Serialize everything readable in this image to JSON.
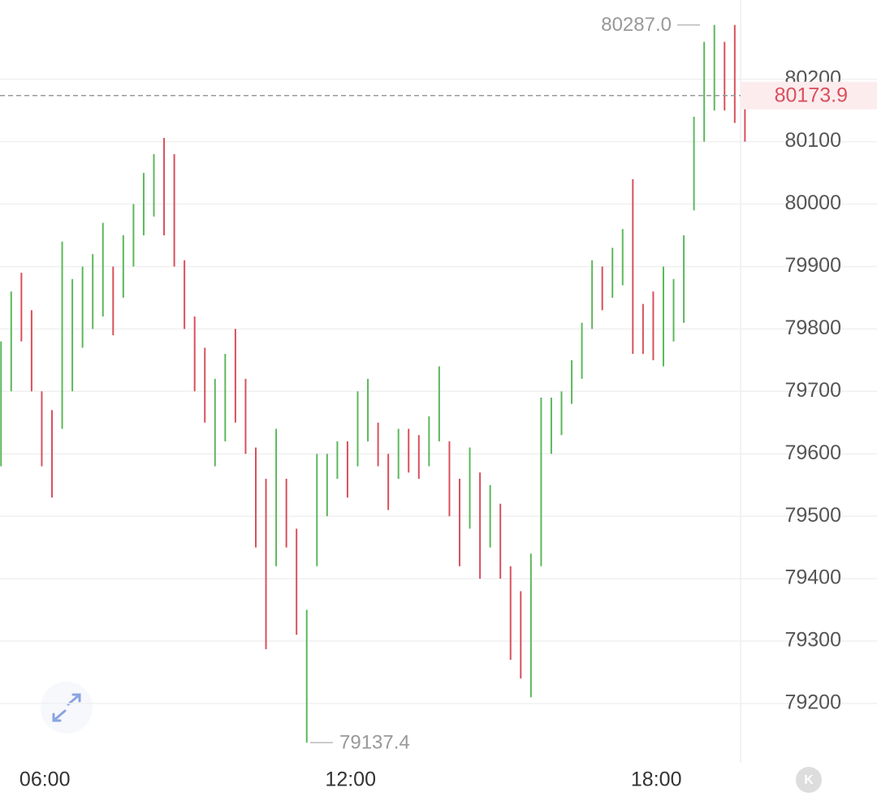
{
  "chart_data": {
    "type": "range_bar",
    "x": [
      5.14,
      5.34,
      5.54,
      5.74,
      5.94,
      6.14,
      6.34,
      6.54,
      6.74,
      6.94,
      7.14,
      7.34,
      7.54,
      7.74,
      7.94,
      8.14,
      8.34,
      8.54,
      8.74,
      8.94,
      9.14,
      9.34,
      9.54,
      9.74,
      9.94,
      10.14,
      10.34,
      10.54,
      10.74,
      10.94,
      11.14,
      11.34,
      11.54,
      11.74,
      11.94,
      12.14,
      12.34,
      12.54,
      12.74,
      12.94,
      13.14,
      13.34,
      13.54,
      13.74,
      13.94,
      14.14,
      14.34,
      14.54,
      14.74,
      14.94,
      15.14,
      15.34,
      15.54,
      15.74,
      15.94,
      16.14,
      16.34,
      16.54,
      16.74,
      16.94,
      17.14,
      17.34,
      17.54,
      17.74,
      17.94,
      18.14,
      18.34,
      18.54,
      18.74,
      18.94,
      19.14,
      19.34,
      19.54,
      19.74
    ],
    "highs": [
      79780,
      79860,
      79890,
      79830,
      79700,
      79670,
      79940,
      79880,
      79900,
      79920,
      79970,
      79900,
      79950,
      80000,
      80050,
      80080,
      80106,
      80080,
      79910,
      79820,
      79770,
      79720,
      79760,
      79800,
      79720,
      79610,
      79560,
      79640,
      79560,
      79480,
      79350,
      79600,
      79600,
      79620,
      79620,
      79700,
      79720,
      79650,
      79600,
      79640,
      79640,
      79630,
      79660,
      79740,
      79620,
      79560,
      79610,
      79570,
      79550,
      79520,
      79420,
      79380,
      79440,
      79690,
      79690,
      79700,
      79750,
      79810,
      79910,
      79900,
      79930,
      79960,
      80040,
      79840,
      79860,
      79900,
      79880,
      79950,
      80140,
      80260,
      80287,
      80260,
      80287,
      80180
    ],
    "lows": [
      79580,
      79700,
      79780,
      79700,
      79580,
      79530,
      79640,
      79700,
      79770,
      79800,
      79820,
      79790,
      79850,
      79900,
      79950,
      79980,
      79950,
      79900,
      79800,
      79700,
      79650,
      79580,
      79620,
      79650,
      79600,
      79450,
      79287,
      79420,
      79450,
      79310,
      79137.4,
      79420,
      79500,
      79560,
      79530,
      79580,
      79620,
      79580,
      79510,
      79560,
      79570,
      79560,
      79580,
      79620,
      79500,
      79420,
      79480,
      79400,
      79450,
      79400,
      79270,
      79240,
      79210,
      79420,
      79600,
      79630,
      79680,
      79720,
      79800,
      79830,
      79850,
      79870,
      79760,
      79760,
      79750,
      79740,
      79780,
      79810,
      79990,
      80100,
      80150,
      80150,
      80130,
      80100
    ],
    "up": [
      true,
      true,
      false,
      false,
      false,
      false,
      true,
      true,
      true,
      true,
      true,
      false,
      true,
      true,
      true,
      true,
      false,
      false,
      false,
      false,
      false,
      true,
      true,
      false,
      false,
      false,
      false,
      true,
      false,
      false,
      true,
      true,
      true,
      true,
      false,
      true,
      true,
      false,
      false,
      true,
      false,
      false,
      true,
      true,
      false,
      false,
      true,
      false,
      true,
      false,
      false,
      false,
      true,
      true,
      true,
      true,
      true,
      true,
      true,
      false,
      true,
      true,
      false,
      false,
      false,
      true,
      true,
      true,
      true,
      true,
      true,
      false,
      false,
      false
    ],
    "up_color": "#5cb85c",
    "down_color": "#d9505c",
    "xlim": [
      5.12,
      19.75
    ],
    "xticks": [
      {
        "value": 6,
        "label": "06:00"
      },
      {
        "value": 12,
        "label": "12:00"
      },
      {
        "value": 18,
        "label": "18:00"
      }
    ],
    "ylim": [
      79105,
      80327
    ],
    "yticks": [
      79200,
      79300,
      79400,
      79500,
      79600,
      79700,
      79800,
      79900,
      80000,
      80100,
      80200
    ],
    "grid": true,
    "max_label": {
      "value": 80287,
      "label": "80287.0"
    },
    "min_label": 79137.4,
    "current_price": 80173.9,
    "button": "K"
  }
}
